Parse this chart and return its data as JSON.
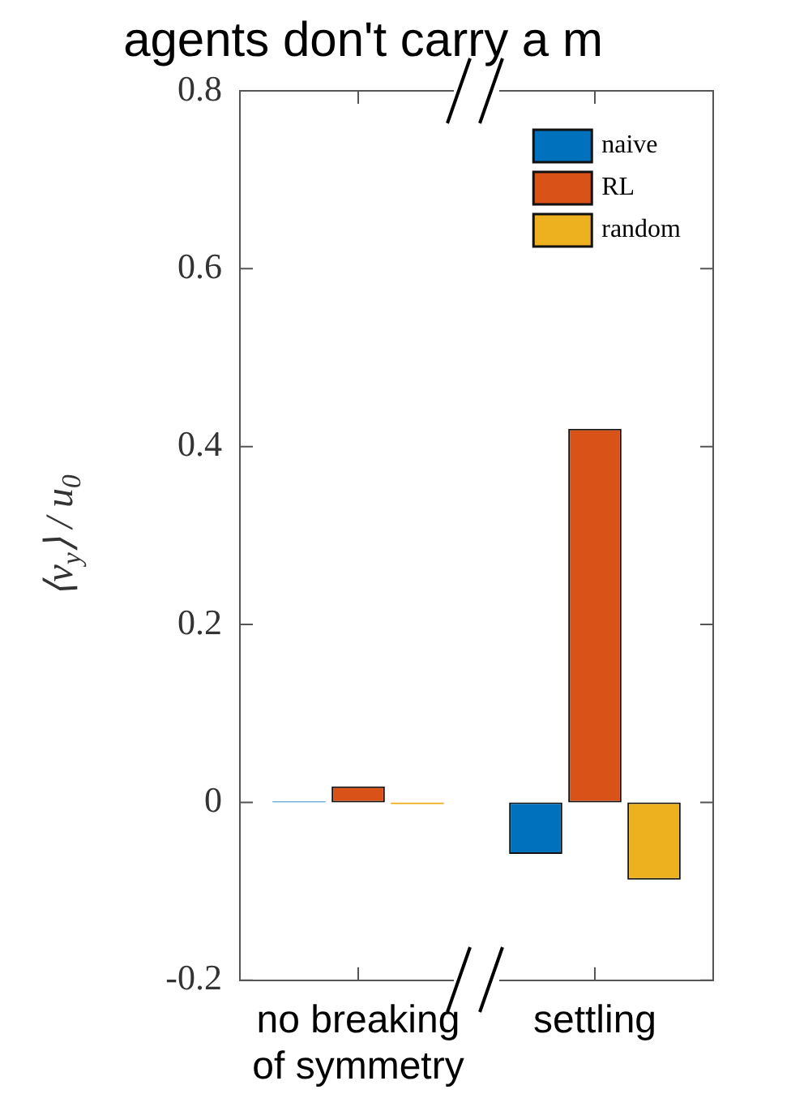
{
  "chart_data": {
    "type": "bar",
    "title": "agents don't carry a m",
    "ylabel": "⟨v$_{y}$⟩ / u$_{0}$",
    "categories": [
      "no breaking of symmetry",
      "settling"
    ],
    "series": [
      {
        "name": "naive",
        "color": "#0072bd",
        "values": [
          0.001,
          -0.058
        ]
      },
      {
        "name": "RL",
        "color": "#d95319",
        "values": [
          0.018,
          0.42
        ]
      },
      {
        "name": "random",
        "color": "#edb120",
        "values": [
          -0.002,
          -0.087
        ]
      }
    ],
    "ylim": [
      -0.2,
      0.8
    ],
    "yticks": [
      -0.2,
      0,
      0.2,
      0.4,
      0.6,
      0.8
    ],
    "grid": false,
    "legend": "top right"
  }
}
